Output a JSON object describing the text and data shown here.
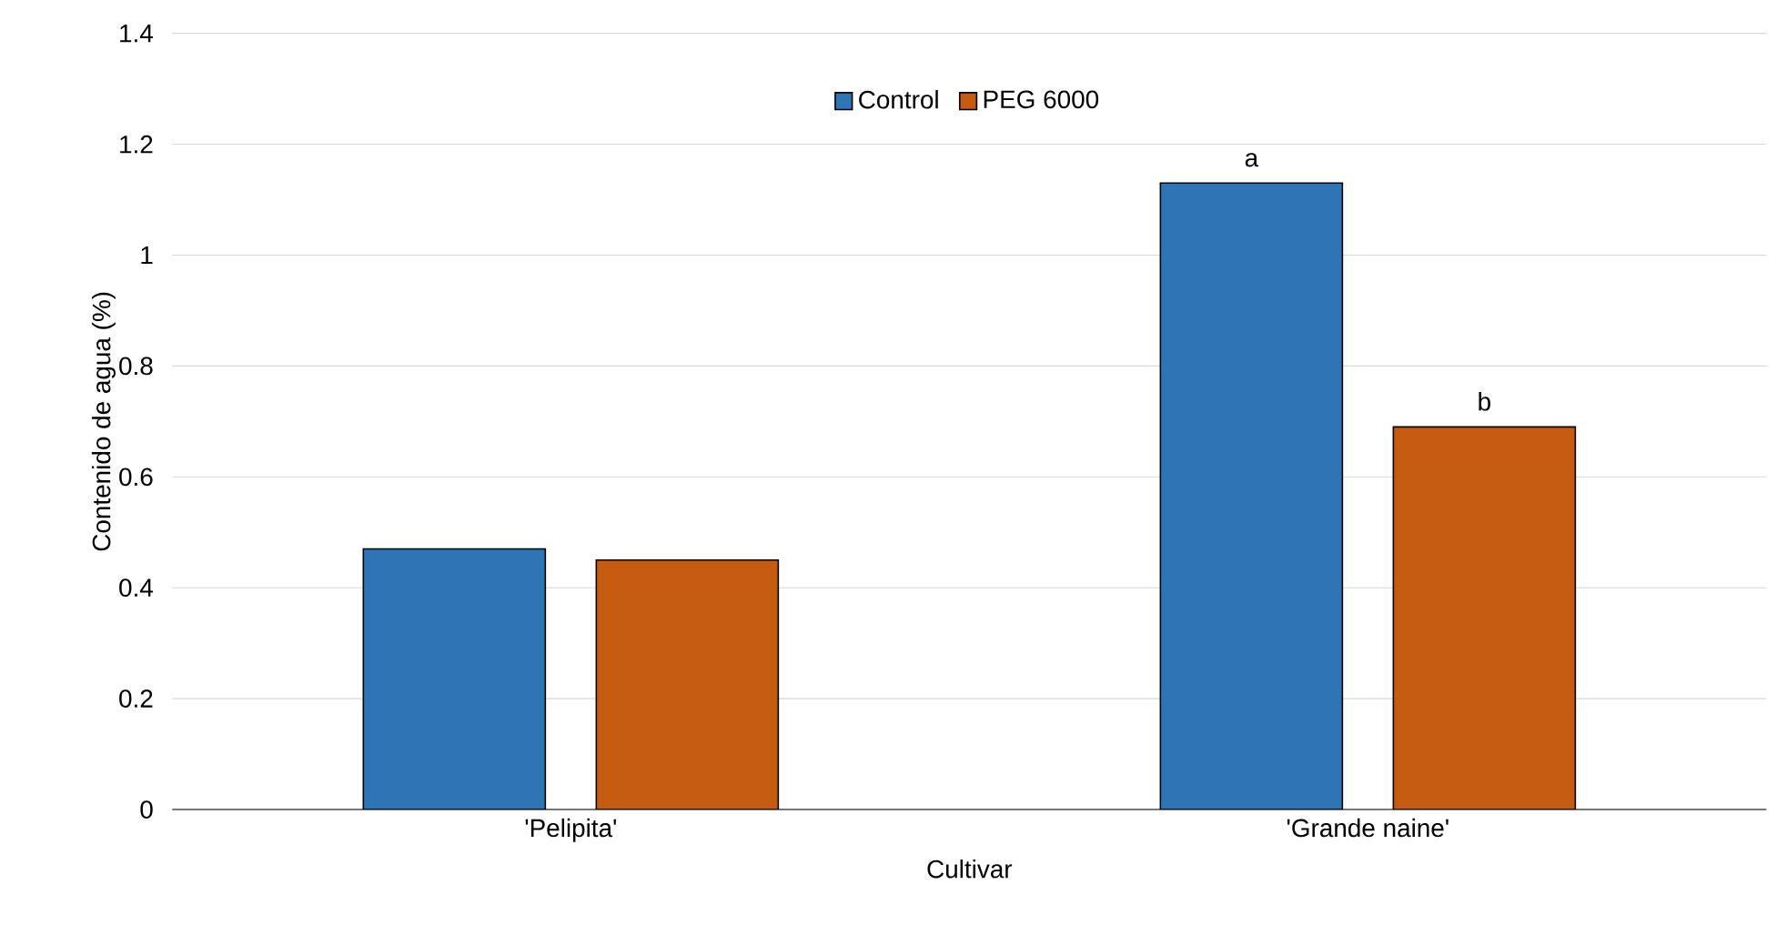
{
  "chart_data": {
    "type": "bar",
    "xlabel": "Cultivar",
    "ylabel": "Contenido de agua (%)",
    "categories": [
      "'Pelipita'",
      "'Grande naine'"
    ],
    "series": [
      {
        "name": "Control",
        "color": "#2e75b6",
        "values": [
          0.47,
          1.13
        ]
      },
      {
        "name": "PEG 6000",
        "color": "#c55a11",
        "values": [
          0.45,
          0.69
        ]
      }
    ],
    "ylim": [
      0,
      1.4
    ],
    "yticks": [
      0,
      0.2,
      0.4,
      0.6,
      0.8,
      1,
      1.2,
      1.4
    ],
    "grid": "y",
    "legend": "top",
    "annotations": [
      "a",
      "b"
    ]
  }
}
